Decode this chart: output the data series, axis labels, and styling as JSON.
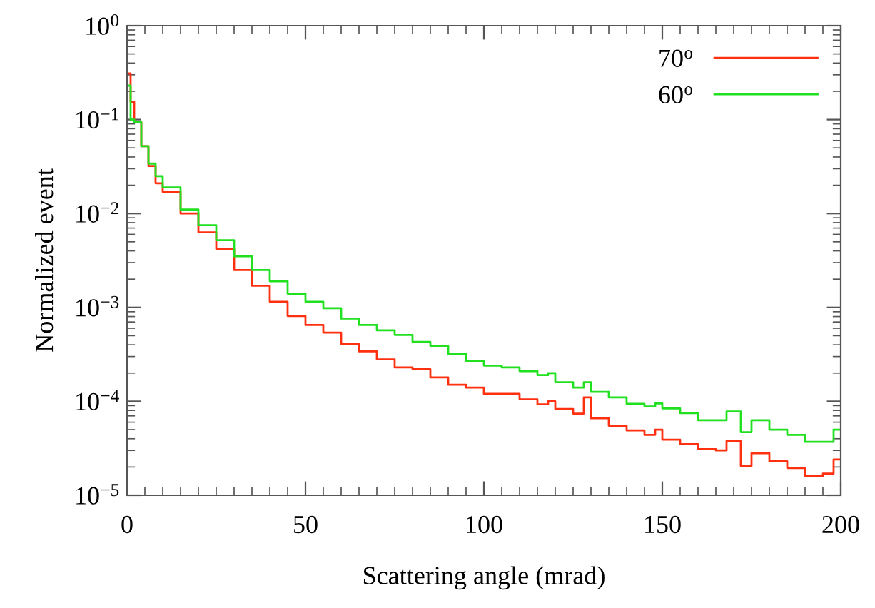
{
  "chart_data": {
    "type": "step",
    "xlabel": "Scattering angle (mrad)",
    "ylabel": "Normalized event",
    "log": "y",
    "legend": "top right",
    "grid": false,
    "xlim": [
      0,
      200
    ],
    "xticks": [
      0,
      50,
      100,
      150,
      200
    ],
    "ylim": [
      1e-05,
      1
    ],
    "yticks": [
      {
        "value": 1e-05,
        "label": "10$^{−5}$"
      },
      {
        "value": 0.0001,
        "label": "10$^{−4}$"
      },
      {
        "value": 0.001,
        "label": "10$^{−3}$"
      },
      {
        "value": 0.01,
        "label": "10$^{−2}$"
      },
      {
        "value": 0.1,
        "label": "10$^{−1}$"
      },
      {
        "value": 1,
        "label": "10$^{0}$"
      }
    ],
    "x": [
      0,
      1,
      2,
      4,
      6,
      8,
      10,
      15,
      20,
      25,
      30,
      35,
      40,
      45,
      50,
      55,
      60,
      65,
      70,
      75,
      80,
      85,
      90,
      95,
      100,
      105,
      110,
      115,
      118,
      120,
      125,
      128,
      130,
      135,
      140,
      145,
      148,
      150,
      155,
      160,
      165,
      168,
      172,
      175,
      180,
      185,
      190,
      195,
      198,
      200
    ],
    "series": [
      {
        "name": "70$^{o}$",
        "color": "#ff3010",
        "values": [
          0.31,
          0.155,
          0.094,
          0.052,
          0.032,
          0.021,
          0.017,
          0.01,
          0.0063,
          0.0042,
          0.0025,
          0.0017,
          0.00115,
          0.00081,
          0.00065,
          0.00054,
          0.00041,
          0.00034,
          0.00028,
          0.00023,
          0.00022,
          0.00018,
          0.00015,
          0.00014,
          0.00012,
          0.00012,
          0.000105,
          9.3e-05,
          0.0001,
          8.3e-05,
          7.4e-05,
          0.00011,
          6.6e-05,
          5.5e-05,
          4.9e-05,
          4.4e-05,
          5e-05,
          3.9e-05,
          3.5e-05,
          3.1e-05,
          3e-05,
          3.8e-05,
          2.05e-05,
          2.8e-05,
          2.3e-05,
          1.95e-05,
          1.6e-05,
          1.7e-05,
          2.4e-05,
          2.4e-05
        ]
      },
      {
        "name": "60$^{o}$",
        "color": "#20e020",
        "values": [
          0.23,
          0.1,
          0.094,
          0.052,
          0.034,
          0.025,
          0.019,
          0.011,
          0.0075,
          0.0052,
          0.0035,
          0.0025,
          0.0019,
          0.0014,
          0.00115,
          0.00098,
          0.00076,
          0.00065,
          0.00057,
          0.00051,
          0.00043,
          0.00039,
          0.00032,
          0.00027,
          0.00024,
          0.00023,
          0.00021,
          0.00019,
          0.0002,
          0.00016,
          0.00014,
          0.00016,
          0.000126,
          0.00011,
          9.4e-05,
          8.8e-05,
          9.5e-05,
          8.4e-05,
          7.5e-05,
          6.3e-05,
          6.3e-05,
          7.8e-05,
          4.7e-05,
          6.3e-05,
          5e-05,
          4.4e-05,
          3.7e-05,
          3.7e-05,
          5e-05,
          5e-05
        ]
      }
    ]
  }
}
